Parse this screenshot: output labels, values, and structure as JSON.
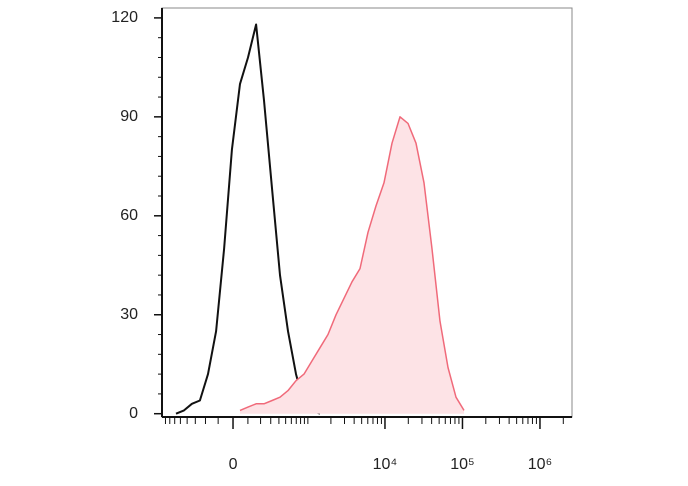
{
  "chart_data": {
    "type": "histogram-overlay",
    "x": [
      -576,
      -444,
      -339,
      -252,
      -178,
      -115,
      -59,
      -7,
      46,
      101,
      162,
      231,
      315,
      415,
      539,
      694,
      889,
      1134,
      1445,
      1835,
      2330,
      2959,
      3754,
      4761,
      6042,
      7661,
      9719,
      12330,
      15640,
      19820,
      25160,
      31890,
      40430,
      51290,
      65040,
      82450,
      104600,
      132600
    ],
    "series": [
      {
        "color": "#111111",
        "values": [
          0,
          1,
          3,
          4,
          12,
          25,
          50,
          80,
          100,
          108,
          118,
          95,
          68,
          42,
          25,
          12,
          3,
          1,
          0,
          null,
          null,
          null,
          null,
          null,
          null,
          null,
          null,
          null,
          null,
          null,
          null,
          null,
          null,
          null,
          null,
          null,
          null,
          null
        ]
      },
      {
        "color": "#f06a7a",
        "fill": "#fde3e6",
        "values": [
          null,
          null,
          null,
          null,
          null,
          null,
          null,
          null,
          1,
          2,
          3,
          3,
          4,
          5,
          7,
          10,
          12,
          16,
          20,
          24,
          30,
          35,
          40,
          44,
          55,
          63,
          70,
          82,
          90,
          88,
          82,
          70,
          50,
          28,
          14,
          5,
          1,
          null
        ]
      }
    ],
    "xscale": "biexponential",
    "xlim": [
      -890,
      2590000
    ],
    "xticks": [
      {
        "value": 0,
        "label": "0"
      },
      {
        "value": 10000,
        "label": "10⁴"
      },
      {
        "value": 100000,
        "label": "10⁵"
      },
      {
        "value": 1000000,
        "label": "10⁶"
      }
    ],
    "xminorticks": [
      -800,
      -700,
      -600,
      -500,
      -400,
      -300,
      -200,
      -100,
      100,
      200,
      300,
      400,
      500,
      600,
      700,
      800,
      900,
      1000,
      2000,
      3000,
      4000,
      5000,
      6000,
      7000,
      8000,
      9000,
      20000,
      30000,
      40000,
      50000,
      60000,
      70000,
      80000,
      90000,
      200000,
      300000,
      400000,
      500000,
      600000,
      700000,
      800000,
      900000,
      2000000
    ],
    "ylim": [
      -1,
      123
    ],
    "yticks": [
      0,
      30,
      60,
      90,
      120
    ],
    "yminorticks": [
      6,
      12,
      18,
      24,
      36,
      42,
      48,
      54,
      66,
      72,
      78,
      84,
      96,
      102,
      108,
      114
    ]
  }
}
